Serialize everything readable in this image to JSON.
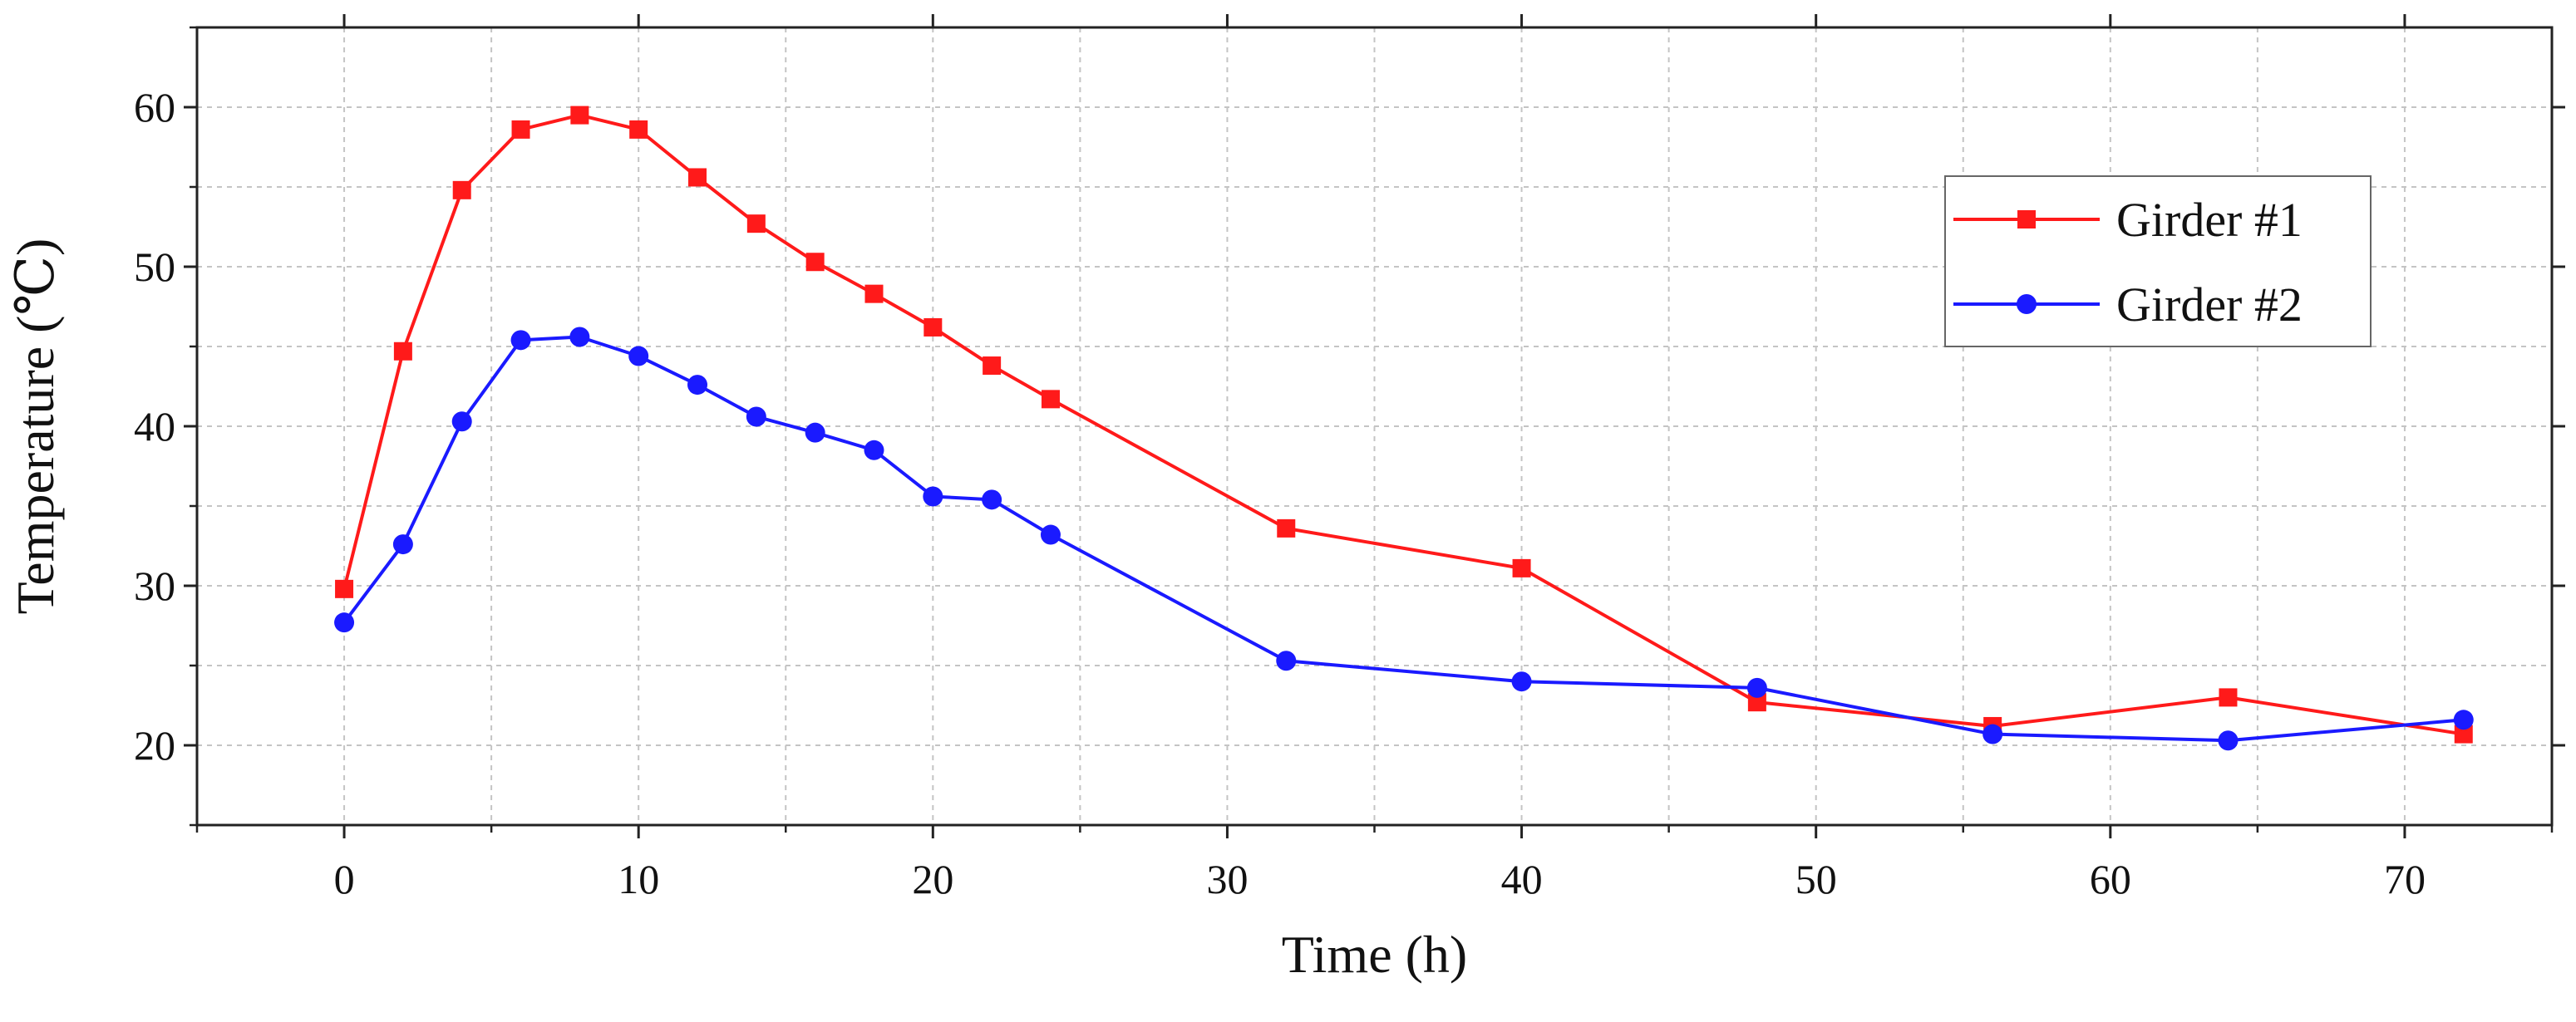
{
  "chart_data": {
    "type": "line",
    "title": "",
    "xlabel": "Time (h)",
    "ylabel": "Temperature (℃)",
    "xlim": [
      -5,
      75
    ],
    "ylim": [
      15,
      65
    ],
    "xticks": [
      0,
      10,
      20,
      30,
      40,
      50,
      60,
      70
    ],
    "yticks": [
      20,
      30,
      40,
      50,
      60
    ],
    "grid": true,
    "legend_position": "top-right",
    "x": [
      0,
      2,
      4,
      6,
      8,
      10,
      12,
      14,
      16,
      18,
      20,
      22,
      24,
      32,
      40,
      48,
      56,
      64,
      72
    ],
    "series": [
      {
        "name": "Girder #1",
        "color": "#ff1a1a",
        "marker": "square",
        "values": [
          29.8,
          44.7,
          54.8,
          58.6,
          59.5,
          58.6,
          55.6,
          52.7,
          50.3,
          48.3,
          46.2,
          43.8,
          41.7,
          33.6,
          31.1,
          22.7,
          21.2,
          23.0,
          20.7
        ]
      },
      {
        "name": "Girder #2",
        "color": "#1a1aff",
        "marker": "circle",
        "values": [
          27.7,
          32.6,
          40.3,
          45.4,
          45.6,
          44.4,
          42.6,
          40.6,
          39.6,
          38.5,
          35.6,
          35.4,
          33.2,
          25.3,
          24.0,
          23.6,
          20.7,
          20.3,
          21.6
        ]
      }
    ]
  }
}
